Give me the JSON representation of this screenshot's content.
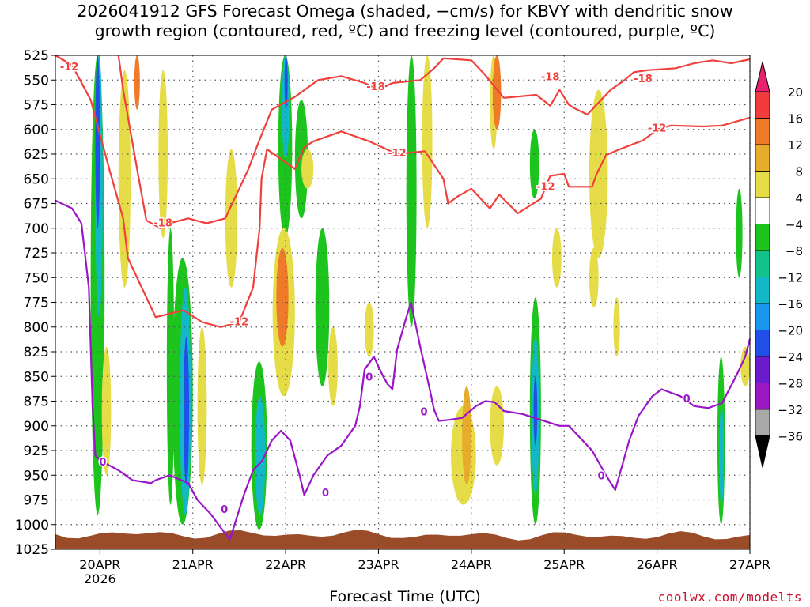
{
  "title": {
    "line1": "2026041912 GFS Forecast Omega (shaded, −cm/s) for KBVY with dendritic snow",
    "line2": "growth region (contoured, red, ºC) and freezing level (contoured, purple, ºC)"
  },
  "xlabel": "Forecast Time (UTC)",
  "credit": "coolwx.com/modelts",
  "chart_data": {
    "type": "heatmap",
    "title": "2026041912 GFS Forecast Omega (shaded, −cm/s) for KBVY with dendritic snow growth region (contoured, red, ºC) and freezing level (contoured, purple, ºC)",
    "xlabel": "Forecast Time (UTC)",
    "ylabel": "",
    "y_reversed": true,
    "x_ticks": [
      "20APR",
      "21APR",
      "22APR",
      "23APR",
      "24APR",
      "25APR",
      "26APR",
      "27APR"
    ],
    "x_year_label": "2026",
    "y_ticks": [
      525,
      550,
      575,
      600,
      625,
      650,
      675,
      700,
      725,
      750,
      775,
      800,
      825,
      850,
      875,
      900,
      925,
      950,
      975,
      1000,
      1025
    ],
    "xlim": [
      -0.48,
      7.0
    ],
    "ylim": [
      525,
      1025
    ],
    "grid": true,
    "colorbar": {
      "levels": [
        "20",
        "16",
        "12",
        "8",
        "4",
        "−4",
        "−8",
        "−12",
        "−16",
        "−20",
        "−24",
        "−28",
        "−32",
        "−36"
      ],
      "colors": [
        "#e8206e",
        "#f03c3c",
        "#ee7a2a",
        "#e8ac2c",
        "#e6dc48",
        "#ffffff",
        "#1ec41e",
        "#13c28b",
        "#12b8c8",
        "#1a96ee",
        "#2050e8",
        "#6a1ccc",
        "#9a18c4",
        "#a8a8a8",
        "#000000"
      ]
    },
    "shading": [
      {
        "x0": -0.1,
        "x1": 0.05,
        "p0": 525,
        "p1": 990,
        "level": "-8"
      },
      {
        "x0": -0.05,
        "x1": 0.03,
        "p0": 525,
        "p1": 790,
        "level": "-16"
      },
      {
        "x0": -0.05,
        "x1": 0.0,
        "p0": 525,
        "p1": 700,
        "level": "-24"
      },
      {
        "x0": 0.02,
        "x1": 0.12,
        "p0": 820,
        "p1": 950,
        "level": "4"
      },
      {
        "x0": 0.2,
        "x1": 0.33,
        "p0": 540,
        "p1": 760,
        "level": "4"
      },
      {
        "x0": 0.37,
        "x1": 0.43,
        "p0": 525,
        "p1": 580,
        "level": "12"
      },
      {
        "x0": 0.63,
        "x1": 0.73,
        "p0": 540,
        "p1": 710,
        "level": "4"
      },
      {
        "x0": 0.72,
        "x1": 0.8,
        "p0": 700,
        "p1": 980,
        "level": "-8"
      },
      {
        "x0": 0.78,
        "x1": 1.0,
        "p0": 730,
        "p1": 1000,
        "level": "-8"
      },
      {
        "x0": 0.86,
        "x1": 0.98,
        "p0": 760,
        "p1": 990,
        "level": "-16"
      },
      {
        "x0": 0.9,
        "x1": 0.96,
        "p0": 810,
        "p1": 960,
        "level": "-24"
      },
      {
        "x0": 1.05,
        "x1": 1.15,
        "p0": 800,
        "p1": 960,
        "level": "4"
      },
      {
        "x0": 1.35,
        "x1": 1.48,
        "p0": 620,
        "p1": 760,
        "level": "4"
      },
      {
        "x0": 1.63,
        "x1": 1.8,
        "p0": 835,
        "p1": 1005,
        "level": "-8"
      },
      {
        "x0": 1.67,
        "x1": 1.78,
        "p0": 870,
        "p1": 990,
        "level": "-16"
      },
      {
        "x0": 1.92,
        "x1": 2.07,
        "p0": 525,
        "p1": 710,
        "level": "-8"
      },
      {
        "x0": 1.96,
        "x1": 2.04,
        "p0": 525,
        "p1": 630,
        "level": "-16"
      },
      {
        "x0": 1.99,
        "x1": 2.02,
        "p0": 525,
        "p1": 580,
        "level": "-24"
      },
      {
        "x0": 1.86,
        "x1": 2.1,
        "p0": 700,
        "p1": 870,
        "level": "4"
      },
      {
        "x0": 1.9,
        "x1": 2.03,
        "p0": 720,
        "p1": 820,
        "level": "12"
      },
      {
        "x0": 2.1,
        "x1": 2.24,
        "p0": 570,
        "p1": 690,
        "level": "-8"
      },
      {
        "x0": 2.17,
        "x1": 2.3,
        "p0": 620,
        "p1": 660,
        "level": "4"
      },
      {
        "x0": 2.32,
        "x1": 2.47,
        "p0": 700,
        "p1": 860,
        "level": "-8"
      },
      {
        "x0": 2.46,
        "x1": 2.56,
        "p0": 800,
        "p1": 880,
        "level": "4"
      },
      {
        "x0": 2.85,
        "x1": 2.95,
        "p0": 775,
        "p1": 830,
        "level": "4"
      },
      {
        "x0": 3.3,
        "x1": 3.41,
        "p0": 525,
        "p1": 800,
        "level": "-8"
      },
      {
        "x0": 3.47,
        "x1": 3.58,
        "p0": 525,
        "p1": 700,
        "level": "4"
      },
      {
        "x0": 3.78,
        "x1": 4.05,
        "p0": 880,
        "p1": 980,
        "level": "4"
      },
      {
        "x0": 3.9,
        "x1": 4.0,
        "p0": 860,
        "p1": 960,
        "level": "8"
      },
      {
        "x0": 4.2,
        "x1": 4.35,
        "p0": 860,
        "p1": 940,
        "level": "4"
      },
      {
        "x0": 4.2,
        "x1": 4.28,
        "p0": 525,
        "p1": 620,
        "level": "4"
      },
      {
        "x0": 4.23,
        "x1": 4.32,
        "p0": 525,
        "p1": 600,
        "level": "12"
      },
      {
        "x0": 4.63,
        "x1": 4.73,
        "p0": 600,
        "p1": 670,
        "level": "-8"
      },
      {
        "x0": 4.63,
        "x1": 4.75,
        "p0": 770,
        "p1": 1000,
        "level": "-8"
      },
      {
        "x0": 4.65,
        "x1": 4.73,
        "p0": 810,
        "p1": 970,
        "level": "-16"
      },
      {
        "x0": 4.67,
        "x1": 4.71,
        "p0": 850,
        "p1": 920,
        "level": "-24"
      },
      {
        "x0": 4.87,
        "x1": 4.97,
        "p0": 700,
        "p1": 760,
        "level": "4"
      },
      {
        "x0": 5.27,
        "x1": 5.47,
        "p0": 560,
        "p1": 730,
        "level": "4"
      },
      {
        "x0": 5.27,
        "x1": 5.37,
        "p0": 720,
        "p1": 780,
        "level": "4"
      },
      {
        "x0": 5.53,
        "x1": 5.6,
        "p0": 770,
        "p1": 830,
        "level": "4"
      },
      {
        "x0": 6.65,
        "x1": 6.73,
        "p0": 830,
        "p1": 1000,
        "level": "-8"
      },
      {
        "x0": 6.67,
        "x1": 6.72,
        "p0": 880,
        "p1": 980,
        "level": "-16"
      },
      {
        "x0": 6.85,
        "x1": 6.92,
        "p0": 660,
        "p1": 750,
        "level": "-8"
      },
      {
        "x0": 6.9,
        "x1": 7.0,
        "p0": 820,
        "p1": 860,
        "level": "4"
      }
    ],
    "dgz_contours": [
      {
        "label": "-12",
        "points": [
          [
            -0.48,
            525
          ],
          [
            -0.3,
            535
          ],
          [
            -0.1,
            570
          ],
          [
            0.1,
            640
          ],
          [
            0.25,
            690
          ],
          [
            0.3,
            730
          ],
          [
            0.5,
            770
          ],
          [
            0.6,
            790
          ],
          [
            0.9,
            783
          ],
          [
            1.1,
            795
          ],
          [
            1.3,
            800
          ],
          [
            1.5,
            795
          ],
          [
            1.65,
            760
          ],
          [
            1.72,
            700
          ],
          [
            1.74,
            650
          ],
          [
            1.8,
            620
          ],
          [
            2.1,
            640
          ],
          [
            2.2,
            618
          ],
          [
            2.3,
            612
          ],
          [
            2.6,
            602
          ],
          [
            2.9,
            612
          ],
          [
            3.2,
            625
          ],
          [
            3.5,
            622
          ],
          [
            3.7,
            650
          ],
          [
            3.75,
            675
          ],
          [
            3.85,
            668
          ],
          [
            4.0,
            660
          ],
          [
            4.2,
            680
          ],
          [
            4.3,
            666
          ],
          [
            4.5,
            685
          ],
          [
            4.75,
            670
          ],
          [
            4.85,
            647
          ],
          [
            5.0,
            645
          ],
          [
            5.05,
            658
          ],
          [
            5.3,
            658
          ],
          [
            5.35,
            645
          ],
          [
            5.45,
            626
          ],
          [
            5.6,
            620
          ],
          [
            5.85,
            611
          ],
          [
            5.95,
            604
          ],
          [
            6.0,
            600
          ],
          [
            6.15,
            596
          ],
          [
            6.5,
            597
          ],
          [
            6.7,
            596
          ],
          [
            6.85,
            592
          ],
          [
            7.0,
            588
          ]
        ]
      },
      {
        "label": "-18",
        "points": [
          [
            0.2,
            525
          ],
          [
            0.25,
            560
          ],
          [
            0.4,
            640
          ],
          [
            0.5,
            692
          ],
          [
            0.65,
            700
          ],
          [
            0.75,
            695
          ],
          [
            0.95,
            690
          ],
          [
            1.15,
            695
          ],
          [
            1.35,
            690
          ],
          [
            1.6,
            640
          ],
          [
            1.7,
            615
          ],
          [
            1.85,
            580
          ],
          [
            2.1,
            567
          ],
          [
            2.35,
            550
          ],
          [
            2.6,
            546
          ],
          [
            2.85,
            553
          ],
          [
            3.0,
            560
          ],
          [
            3.15,
            553
          ],
          [
            3.45,
            550
          ],
          [
            3.6,
            538
          ],
          [
            3.7,
            528
          ],
          [
            4.0,
            530
          ],
          [
            4.15,
            545
          ],
          [
            4.35,
            568
          ],
          [
            4.7,
            565
          ],
          [
            4.85,
            576
          ],
          [
            4.95,
            560
          ],
          [
            5.05,
            575
          ],
          [
            5.1,
            578
          ],
          [
            5.25,
            585
          ],
          [
            5.35,
            575
          ],
          [
            5.5,
            560
          ],
          [
            5.65,
            550
          ],
          [
            5.75,
            542
          ],
          [
            5.9,
            540
          ],
          [
            6.2,
            538
          ],
          [
            6.4,
            533
          ],
          [
            6.6,
            530
          ],
          [
            6.8,
            533
          ],
          [
            7.0,
            529
          ]
        ]
      }
    ],
    "freezing_level": {
      "label": "0",
      "points": [
        [
          -0.48,
          672
        ],
        [
          -0.3,
          680
        ],
        [
          -0.2,
          695
        ],
        [
          -0.12,
          760
        ],
        [
          -0.08,
          880
        ],
        [
          -0.05,
          930
        ],
        [
          0.0,
          935
        ],
        [
          0.1,
          940
        ],
        [
          0.2,
          945
        ],
        [
          0.35,
          955
        ],
        [
          0.55,
          958
        ],
        [
          0.6,
          955
        ],
        [
          0.75,
          950
        ],
        [
          0.95,
          958
        ],
        [
          1.05,
          975
        ],
        [
          1.2,
          990
        ],
        [
          1.3,
          1003
        ],
        [
          1.4,
          1015
        ],
        [
          1.5,
          985
        ],
        [
          1.55,
          970
        ],
        [
          1.65,
          945
        ],
        [
          1.75,
          935
        ],
        [
          1.85,
          915
        ],
        [
          1.95,
          905
        ],
        [
          2.05,
          915
        ],
        [
          2.15,
          950
        ],
        [
          2.2,
          970
        ],
        [
          2.3,
          950
        ],
        [
          2.45,
          930
        ],
        [
          2.6,
          920
        ],
        [
          2.75,
          900
        ],
        [
          2.8,
          880
        ],
        [
          2.85,
          843
        ],
        [
          2.95,
          830
        ],
        [
          3.05,
          850
        ],
        [
          3.1,
          858
        ],
        [
          3.15,
          863
        ],
        [
          3.2,
          823
        ],
        [
          3.3,
          790
        ],
        [
          3.35,
          775
        ],
        [
          3.45,
          820
        ],
        [
          3.55,
          862
        ],
        [
          3.6,
          884
        ],
        [
          3.65,
          895
        ],
        [
          3.75,
          894
        ],
        [
          3.9,
          892
        ],
        [
          4.05,
          880
        ],
        [
          4.15,
          875
        ],
        [
          4.25,
          876
        ],
        [
          4.35,
          885
        ],
        [
          4.55,
          888
        ],
        [
          4.75,
          894
        ],
        [
          4.95,
          900
        ],
        [
          5.05,
          900
        ],
        [
          5.15,
          910
        ],
        [
          5.3,
          925
        ],
        [
          5.45,
          950
        ],
        [
          5.55,
          965
        ],
        [
          5.7,
          915
        ],
        [
          5.8,
          890
        ],
        [
          5.95,
          870
        ],
        [
          6.05,
          863
        ],
        [
          6.25,
          870
        ],
        [
          6.4,
          880
        ],
        [
          6.55,
          882
        ],
        [
          6.7,
          877
        ],
        [
          6.85,
          850
        ],
        [
          6.95,
          830
        ],
        [
          7.0,
          812
        ]
      ]
    },
    "contour_labels": [
      {
        "text": "-12",
        "x": -0.33,
        "p": 537,
        "series": "dgz"
      },
      {
        "text": "-18",
        "x": 0.68,
        "p": 695,
        "series": "dgz"
      },
      {
        "text": "-12",
        "x": 1.5,
        "p": 795,
        "series": "dgz"
      },
      {
        "text": "-18",
        "x": 2.97,
        "p": 557,
        "series": "dgz"
      },
      {
        "text": "-12",
        "x": 3.2,
        "p": 624,
        "series": "dgz"
      },
      {
        "text": "-18",
        "x": 4.85,
        "p": 547,
        "series": "dgz"
      },
      {
        "text": "-12",
        "x": 4.8,
        "p": 658,
        "series": "dgz"
      },
      {
        "text": "-18",
        "x": 5.85,
        "p": 549,
        "series": "dgz"
      },
      {
        "text": "-12",
        "x": 6.0,
        "p": 599,
        "series": "dgz"
      },
      {
        "text": "0",
        "x": 0.03,
        "p": 937,
        "series": "freezing"
      },
      {
        "text": "0",
        "x": 1.34,
        "p": 985,
        "series": "freezing"
      },
      {
        "text": "0",
        "x": 2.43,
        "p": 968,
        "series": "freezing"
      },
      {
        "text": "0",
        "x": 3.49,
        "p": 886,
        "series": "freezing"
      },
      {
        "text": "0",
        "x": 2.9,
        "p": 851,
        "series": "freezing"
      },
      {
        "text": "0",
        "x": 5.4,
        "p": 951,
        "series": "freezing"
      },
      {
        "text": "0",
        "x": 6.32,
        "p": 873,
        "series": "freezing"
      }
    ],
    "colors": {
      "dgz": "#f0403c",
      "freezing": "#9a14c8",
      "ground": "#9a4c28",
      "grid": "#555555"
    }
  }
}
